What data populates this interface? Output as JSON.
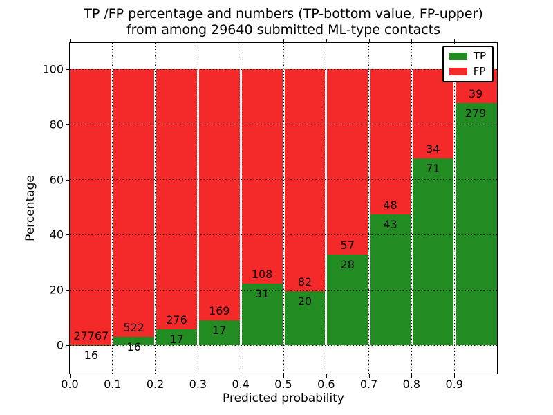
{
  "chart_data": {
    "type": "bar",
    "stacked": true,
    "title_line1": "TP /FP percentage and numbers (TP-bottom value, FP-upper)",
    "title_line2": "from among 29640 submitted ML-type contacts",
    "total_submitted": 29640,
    "xlabel": "Predicted probability",
    "ylabel": "Percentage",
    "xtick_labels": [
      "0.0",
      "0.1",
      "0.2",
      "0.3",
      "0.4",
      "0.5",
      "0.6",
      "0.7",
      "0.8",
      "0.9"
    ],
    "ytick_values": [
      0,
      20,
      40,
      60,
      80,
      100
    ],
    "xlim": [
      0.0,
      1.0
    ],
    "ylim": [
      -10.3,
      109.6
    ],
    "grid": "dotted",
    "legend_position": "upper-right",
    "bin_edges": [
      0.0,
      0.1,
      0.2,
      0.3,
      0.4,
      0.5,
      0.6,
      0.7,
      0.8,
      0.9,
      1.0
    ],
    "series": [
      {
        "name": "TP",
        "color": "#228b22",
        "counts": [
          16,
          16,
          17,
          17,
          31,
          20,
          28,
          43,
          71,
          279
        ],
        "pct": [
          0.06,
          2.97,
          5.8,
          9.14,
          22.3,
          19.61,
          32.94,
          47.25,
          67.62,
          87.74
        ]
      },
      {
        "name": "FP",
        "color": "#f42a2a",
        "counts": [
          27767,
          522,
          276,
          169,
          108,
          82,
          57,
          48,
          34,
          39
        ],
        "pct": [
          99.94,
          97.03,
          94.2,
          90.86,
          77.7,
          80.39,
          67.06,
          52.75,
          32.38,
          12.26
        ]
      }
    ]
  }
}
